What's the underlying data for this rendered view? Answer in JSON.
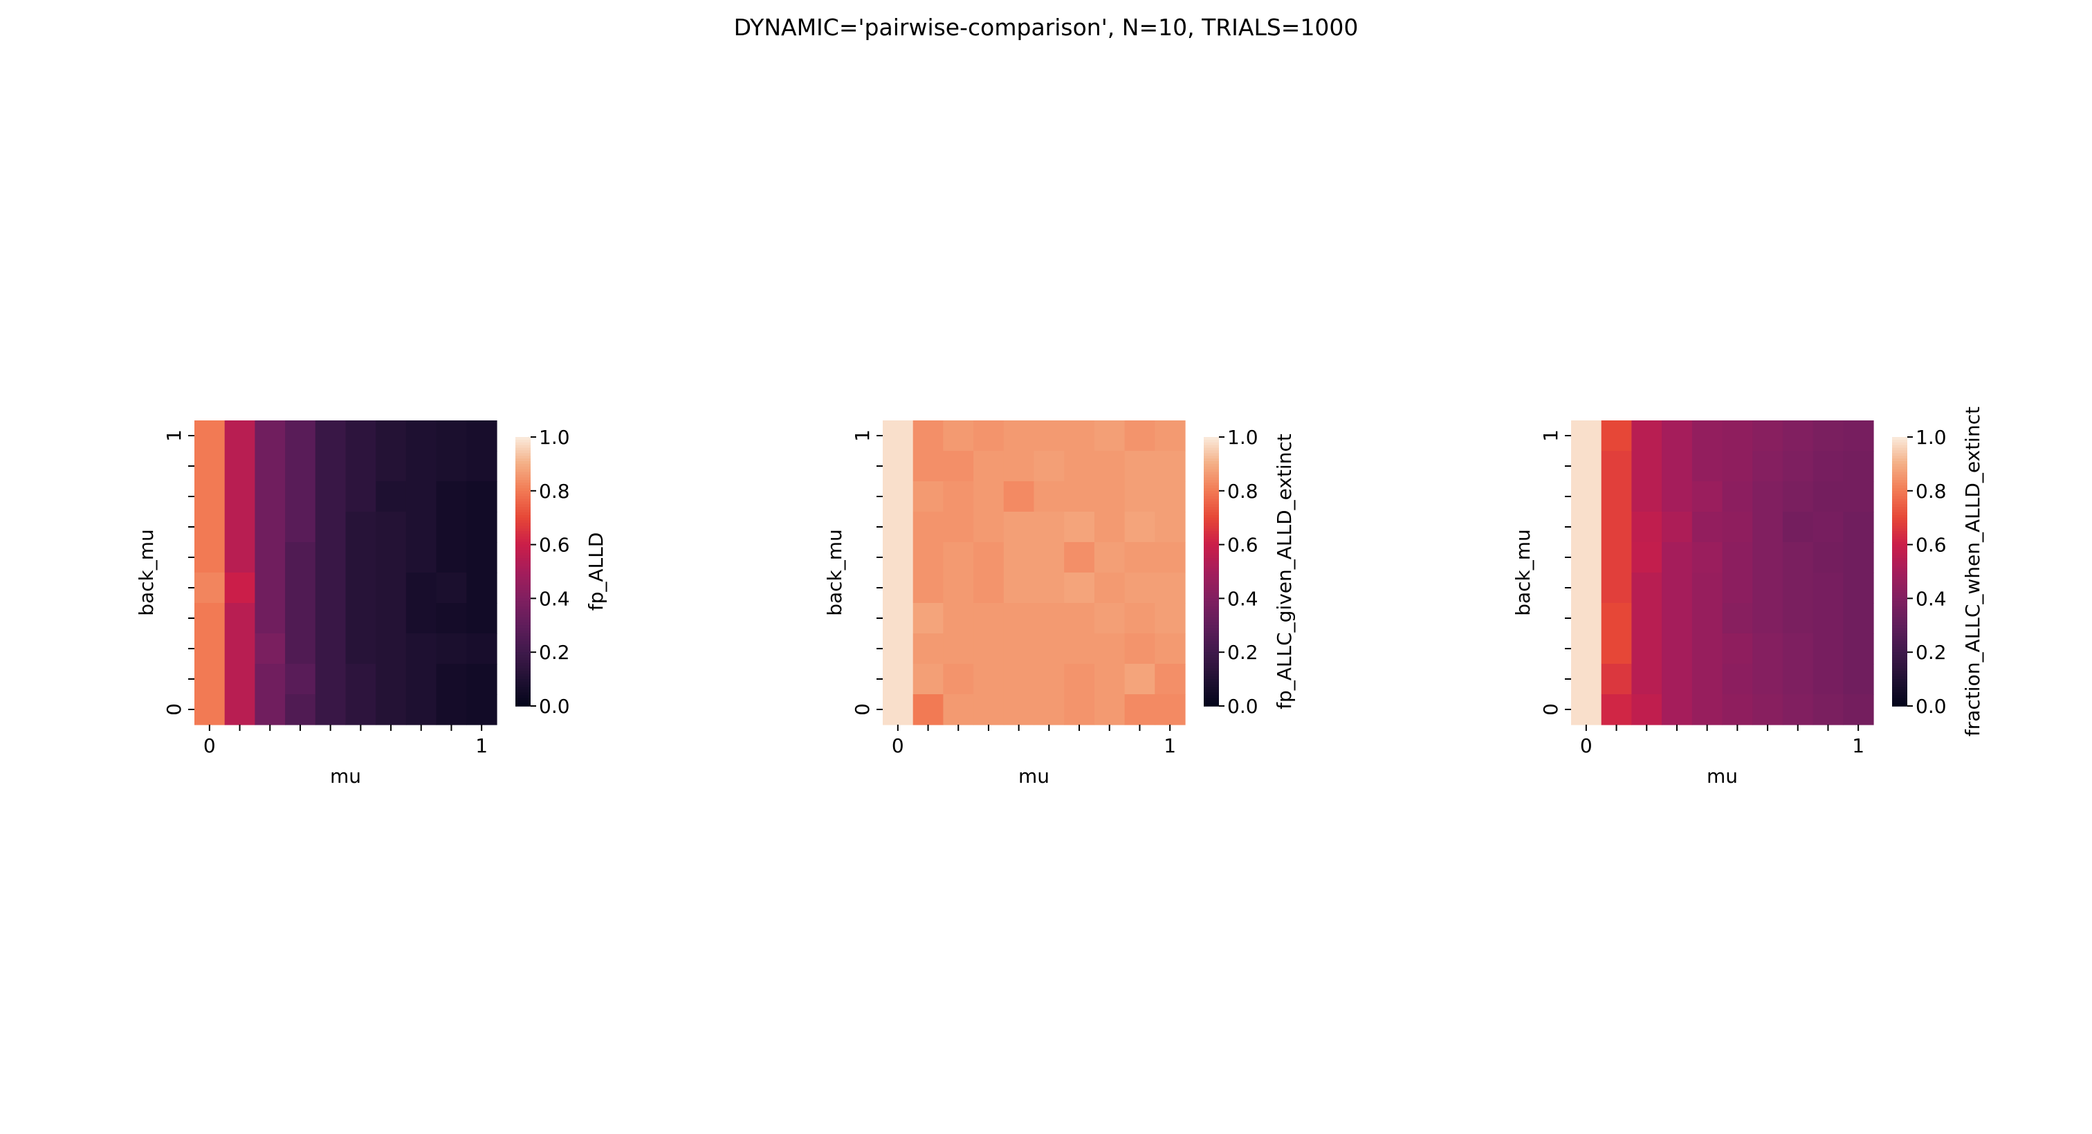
{
  "figure": {
    "suptitle": "DYNAMIC='pairwise-comparison', N=10, TRIALS=1000"
  },
  "chart_data": [
    {
      "type": "heatmap",
      "xlabel": "mu",
      "ylabel": "back_mu",
      "colorbar_label": "fp_ALLD",
      "colormap": "rocket",
      "vlim": [
        0,
        1
      ],
      "x_tick_labels": [
        "0",
        "1"
      ],
      "y_tick_labels": [
        "0",
        "1"
      ],
      "colorbar_ticks": [
        "0.0",
        "0.2",
        "0.4",
        "0.6",
        "0.8",
        "1.0"
      ],
      "rows_top_to_bottom": [
        [
          0.8,
          0.55,
          0.35,
          0.28,
          0.18,
          0.14,
          0.11,
          0.09,
          0.08,
          0.07
        ],
        [
          0.8,
          0.55,
          0.35,
          0.28,
          0.18,
          0.14,
          0.11,
          0.09,
          0.08,
          0.07
        ],
        [
          0.8,
          0.55,
          0.35,
          0.28,
          0.18,
          0.14,
          0.09,
          0.09,
          0.06,
          0.05
        ],
        [
          0.8,
          0.55,
          0.35,
          0.28,
          0.18,
          0.12,
          0.11,
          0.09,
          0.06,
          0.05
        ],
        [
          0.8,
          0.55,
          0.35,
          0.25,
          0.18,
          0.12,
          0.11,
          0.09,
          0.06,
          0.05
        ],
        [
          0.82,
          0.6,
          0.35,
          0.25,
          0.18,
          0.12,
          0.11,
          0.07,
          0.08,
          0.05
        ],
        [
          0.8,
          0.55,
          0.35,
          0.25,
          0.18,
          0.12,
          0.11,
          0.07,
          0.06,
          0.05
        ],
        [
          0.8,
          0.55,
          0.38,
          0.25,
          0.18,
          0.12,
          0.11,
          0.09,
          0.08,
          0.07
        ],
        [
          0.8,
          0.55,
          0.35,
          0.28,
          0.18,
          0.14,
          0.11,
          0.09,
          0.06,
          0.05
        ],
        [
          0.8,
          0.55,
          0.35,
          0.25,
          0.18,
          0.14,
          0.11,
          0.09,
          0.06,
          0.05
        ]
      ]
    },
    {
      "type": "heatmap",
      "xlabel": "mu",
      "ylabel": "back_mu",
      "colorbar_label": "fp_ALLC_given_ALLD_extinct",
      "colormap": "rocket",
      "vlim": [
        0,
        1
      ],
      "x_tick_labels": [
        "0",
        "1"
      ],
      "y_tick_labels": [
        "0",
        "1"
      ],
      "colorbar_ticks": [
        "0.0",
        "0.2",
        "0.4",
        "0.6",
        "0.8",
        "1.0"
      ],
      "rows_top_to_bottom": [
        [
          0.98,
          0.84,
          0.86,
          0.85,
          0.86,
          0.86,
          0.86,
          0.87,
          0.85,
          0.86
        ],
        [
          0.98,
          0.84,
          0.84,
          0.86,
          0.86,
          0.87,
          0.86,
          0.86,
          0.87,
          0.87
        ],
        [
          0.98,
          0.86,
          0.85,
          0.86,
          0.83,
          0.86,
          0.86,
          0.86,
          0.87,
          0.87
        ],
        [
          0.98,
          0.85,
          0.85,
          0.86,
          0.87,
          0.87,
          0.88,
          0.86,
          0.88,
          0.87
        ],
        [
          0.98,
          0.85,
          0.86,
          0.85,
          0.87,
          0.87,
          0.84,
          0.87,
          0.86,
          0.86
        ],
        [
          0.98,
          0.85,
          0.86,
          0.85,
          0.87,
          0.87,
          0.88,
          0.86,
          0.87,
          0.87
        ],
        [
          0.98,
          0.88,
          0.86,
          0.86,
          0.86,
          0.86,
          0.86,
          0.87,
          0.86,
          0.87
        ],
        [
          0.98,
          0.86,
          0.86,
          0.86,
          0.86,
          0.86,
          0.86,
          0.86,
          0.85,
          0.86
        ],
        [
          0.98,
          0.87,
          0.85,
          0.86,
          0.86,
          0.86,
          0.85,
          0.86,
          0.88,
          0.84
        ],
        [
          0.98,
          0.8,
          0.86,
          0.86,
          0.86,
          0.86,
          0.85,
          0.86,
          0.83,
          0.83
        ]
      ]
    },
    {
      "type": "heatmap",
      "xlabel": "mu",
      "ylabel": "back_mu",
      "colorbar_label": "fraction_ALLC_when_ALLD_extinct",
      "colormap": "rocket",
      "vlim": [
        0,
        1
      ],
      "x_tick_labels": [
        "0",
        "1"
      ],
      "y_tick_labels": [
        "0",
        "1"
      ],
      "colorbar_ticks": [
        "0.0",
        "0.2",
        "0.4",
        "0.6",
        "0.8",
        "1.0"
      ],
      "rows_top_to_bottom": [
        [
          0.98,
          0.7,
          0.55,
          0.5,
          0.45,
          0.44,
          0.42,
          0.4,
          0.38,
          0.37
        ],
        [
          0.98,
          0.68,
          0.55,
          0.5,
          0.45,
          0.44,
          0.41,
          0.39,
          0.37,
          0.36
        ],
        [
          0.98,
          0.68,
          0.55,
          0.5,
          0.47,
          0.43,
          0.4,
          0.38,
          0.36,
          0.36
        ],
        [
          0.98,
          0.68,
          0.57,
          0.52,
          0.45,
          0.44,
          0.4,
          0.36,
          0.37,
          0.35
        ],
        [
          0.98,
          0.68,
          0.58,
          0.5,
          0.47,
          0.43,
          0.4,
          0.38,
          0.36,
          0.35
        ],
        [
          0.98,
          0.68,
          0.55,
          0.5,
          0.46,
          0.43,
          0.4,
          0.38,
          0.37,
          0.35
        ],
        [
          0.98,
          0.7,
          0.55,
          0.5,
          0.46,
          0.42,
          0.4,
          0.38,
          0.37,
          0.35
        ],
        [
          0.98,
          0.7,
          0.55,
          0.5,
          0.46,
          0.44,
          0.41,
          0.39,
          0.37,
          0.35
        ],
        [
          0.98,
          0.66,
          0.55,
          0.5,
          0.46,
          0.43,
          0.41,
          0.39,
          0.37,
          0.35
        ],
        [
          0.98,
          0.62,
          0.57,
          0.5,
          0.46,
          0.44,
          0.42,
          0.4,
          0.38,
          0.36
        ]
      ]
    }
  ]
}
